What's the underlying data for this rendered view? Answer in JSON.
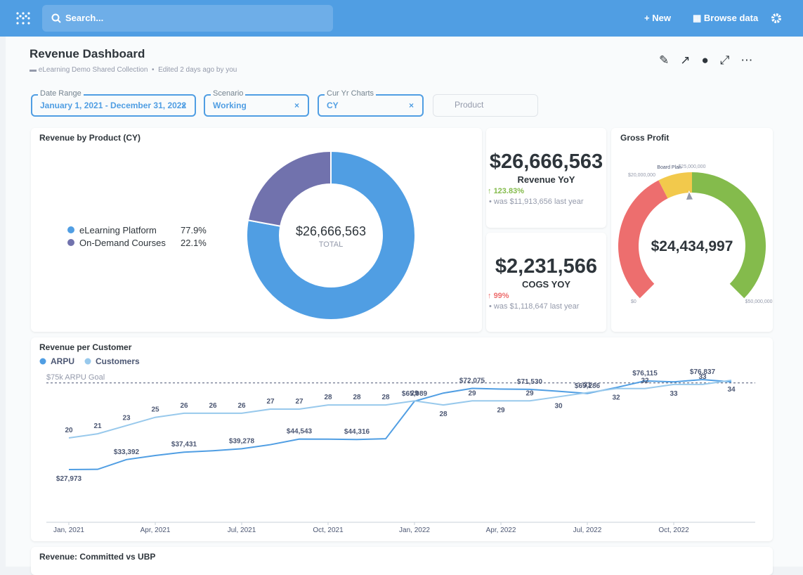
{
  "nav": {
    "search": "Search...",
    "new": "New",
    "browse": "Browse data"
  },
  "dashboard": {
    "title": "Revenue Dashboard",
    "collection": "eLearning Demo Shared Collection",
    "edited": "Edited 2 days ago by you"
  },
  "filters": [
    {
      "label": "Date Range",
      "value": "January 1, 2021 - December 31, 2022"
    },
    {
      "label": "Scenario",
      "value": "Working"
    },
    {
      "label": "Cur Yr Charts",
      "value": "CY"
    },
    {
      "placeholder": "Product"
    }
  ],
  "scalars": [
    {
      "value": "$26,666,563",
      "title": "Revenue YoY",
      "change": "123.83%",
      "previous": "was $11,913,656",
      "suffix": "last year"
    },
    {
      "value": "$2,231,566",
      "title": "COGS YOY",
      "change": "99%",
      "previous": "was $1,118,647",
      "suffix": "last year"
    }
  ],
  "next_card": {
    "title": "Revenue: Committed vs UBP"
  },
  "chart_data": [
    {
      "type": "pie",
      "title": "Revenue by Product (CY)",
      "categories": [
        "eLearning Platform",
        "On-Demand Courses"
      ],
      "values": [
        77.9,
        22.1
      ],
      "value_labels": [
        "77.9%",
        "22.1%"
      ],
      "colors": [
        "#509ee3",
        "#7172ad"
      ],
      "total_label": "$26,666,563",
      "total_caption": "TOTAL"
    },
    {
      "type": "gauge",
      "title": "Gauge",
      "title_text": "Gross Profit",
      "value": 24434997,
      "value_label": "$24,434,997",
      "range": [
        0,
        50000000
      ],
      "segments": [
        {
          "min": 0,
          "max": 20000000,
          "color": "#ed6e6e"
        },
        {
          "min": 20000000,
          "max": 25000000,
          "color": "#f2c94c",
          "label": "Board Plan"
        },
        {
          "min": 25000000,
          "max": 50000000,
          "color": "#84bb4c"
        }
      ],
      "ticks": [
        {
          "value": 0,
          "label": "$0"
        },
        {
          "value": 20000000,
          "label": "$20,000,000"
        },
        {
          "value": 25000000,
          "label": "$25,000,000"
        },
        {
          "value": 50000000,
          "label": "$50,000,000"
        }
      ]
    },
    {
      "type": "line",
      "title": "Revenue per Customer",
      "categories": [
        "Jan, 2021",
        null,
        null,
        "Apr, 2021",
        null,
        null,
        "Jul, 2021",
        null,
        null,
        "Oct, 2021",
        null,
        null,
        "Jan, 2022",
        null,
        null,
        "Apr, 2022",
        null,
        null,
        "Jul, 2022",
        null,
        null,
        "Oct, 2022",
        null,
        null
      ],
      "goal": {
        "value": 75000,
        "label": "$75k ARPU Goal"
      },
      "series": [
        {
          "name": "ARPU",
          "color": "#509ee3",
          "values": [
            27973,
            28100,
            33392,
            35600,
            37431,
            38200,
            39278,
            41500,
            44543,
            44500,
            44316,
            44700,
            65089,
            69500,
            72075,
            71700,
            71530,
            70500,
            69286,
            72500,
            76115,
            75600,
            76837,
            75600
          ],
          "value_labels": [
            "$27,973",
            null,
            "$33,392",
            null,
            "$37,431",
            null,
            "$39,278",
            null,
            "$44,543",
            null,
            "$44,316",
            null,
            "$65,089",
            null,
            "$72,075",
            null,
            "$71,530",
            null,
            "$69,286",
            null,
            "$76,115",
            null,
            "$76,837",
            null
          ]
        },
        {
          "name": "Customers",
          "color": "#98c9ec",
          "axis": "y2",
          "values": [
            20,
            21,
            23,
            25,
            26,
            26,
            26,
            27,
            27,
            28,
            28,
            28,
            29,
            28,
            29,
            29,
            29,
            30,
            31,
            32,
            32,
            33,
            33,
            34
          ]
        }
      ]
    }
  ]
}
